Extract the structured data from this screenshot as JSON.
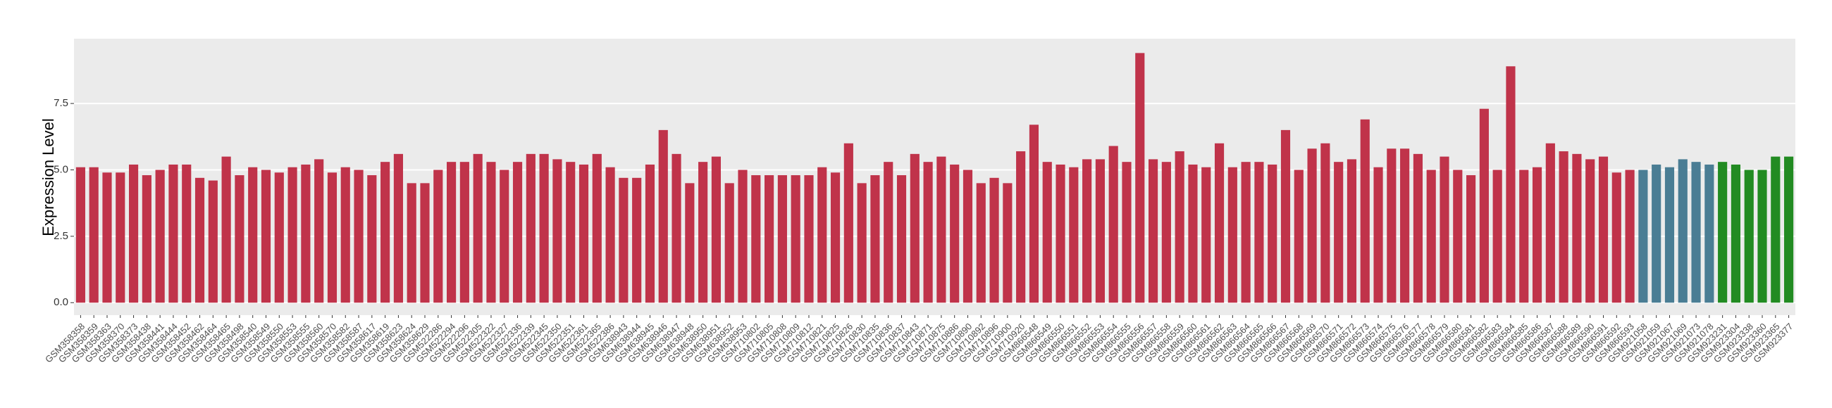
{
  "chart_data": {
    "type": "bar",
    "y_label": "Expression Level",
    "ylim": [
      -0.47,
      9.94
    ],
    "yticks": [
      {
        "value": 0,
        "label": "0.0"
      },
      2.5,
      {
        "value": 5,
        "label": "5.0"
      },
      7.5
    ],
    "grid": true,
    "series": [
      {
        "color": "#c0334a",
        "categories": [
          "GSM358358",
          "GSM358359",
          "GSM358363",
          "GSM358370",
          "GSM358373",
          "GSM358438",
          "GSM358441",
          "GSM358444",
          "GSM358452",
          "GSM358462",
          "GSM358464",
          "GSM358465",
          "GSM358498",
          "GSM358540",
          "GSM358549",
          "GSM358550",
          "GSM358553",
          "GSM358555",
          "GSM358560",
          "GSM358570",
          "GSM358582",
          "GSM358587",
          "GSM358617",
          "GSM358619",
          "GSM358623",
          "GSM358624",
          "GSM358629",
          "GSM522286",
          "GSM522294",
          "GSM522296",
          "GSM522305",
          "GSM522322",
          "GSM522327",
          "GSM522336",
          "GSM522339",
          "GSM522345",
          "GSM522350",
          "GSM522351",
          "GSM522361",
          "GSM522365",
          "GSM522386",
          "GSM638943",
          "GSM638944",
          "GSM638945",
          "GSM638946",
          "GSM638947",
          "GSM638948",
          "GSM638950",
          "GSM638951",
          "GSM638952",
          "GSM638953",
          "GSM710802",
          "GSM710805",
          "GSM710808",
          "GSM710809",
          "GSM710812",
          "GSM710821",
          "GSM710825",
          "GSM710826",
          "GSM710830",
          "GSM710835",
          "GSM710836",
          "GSM710837",
          "GSM710843",
          "GSM710871",
          "GSM710875",
          "GSM710886",
          "GSM710890",
          "GSM710892",
          "GSM710896",
          "GSM710900",
          "GSM710920",
          "GSM866548",
          "GSM866549",
          "GSM866550",
          "GSM866551",
          "GSM866552",
          "GSM866553",
          "GSM866554",
          "GSM866555",
          "GSM866556",
          "GSM866557",
          "GSM866558",
          "GSM866559",
          "GSM866560",
          "GSM866561",
          "GSM866562",
          "GSM866563",
          "GSM866564",
          "GSM866565",
          "GSM866566",
          "GSM866567",
          "GSM866568",
          "GSM866569",
          "GSM866570",
          "GSM866571",
          "GSM866572",
          "GSM866573",
          "GSM866574",
          "GSM866575",
          "GSM866576",
          "GSM866577",
          "GSM866578",
          "GSM866579",
          "GSM866580",
          "GSM866581",
          "GSM866582",
          "GSM866583",
          "GSM866584",
          "GSM866585",
          "GSM866586",
          "GSM866587",
          "GSM866588",
          "GSM866589",
          "GSM866590",
          "GSM866591",
          "GSM866592",
          "GSM866593"
        ],
        "values": [
          5.1,
          5.1,
          4.9,
          4.9,
          5.2,
          4.8,
          5.0,
          5.2,
          5.2,
          4.7,
          4.6,
          5.5,
          4.8,
          5.1,
          5.0,
          4.9,
          5.1,
          5.2,
          5.4,
          4.9,
          5.1,
          5.0,
          4.8,
          5.3,
          5.6,
          4.5,
          4.5,
          5.0,
          5.3,
          5.3,
          5.6,
          5.3,
          5.0,
          5.3,
          5.6,
          5.6,
          5.4,
          5.3,
          5.2,
          5.6,
          5.1,
          4.7,
          4.7,
          5.2,
          6.5,
          5.6,
          4.5,
          5.3,
          5.5,
          4.5,
          5.0,
          4.8,
          4.8,
          4.8,
          4.8,
          4.8,
          5.1,
          4.9,
          6.0,
          4.5,
          4.8,
          5.3,
          4.8,
          5.6,
          5.3,
          5.5,
          5.2,
          5.0,
          4.5,
          4.7,
          4.5,
          5.7,
          6.7,
          5.3,
          5.2,
          5.1,
          5.4,
          5.4,
          5.9,
          5.3,
          9.4,
          5.4,
          5.3,
          5.7,
          5.2,
          5.1,
          6.0,
          5.1,
          5.3,
          5.3,
          5.2,
          6.5,
          5.0,
          5.8,
          6.0,
          5.3,
          5.4,
          6.9,
          5.1,
          5.8,
          5.8,
          5.6,
          5.0,
          5.5,
          5.0,
          4.8,
          7.3,
          5.0,
          8.9,
          5.0,
          5.1,
          6.0,
          5.7,
          5.6,
          5.4,
          5.5,
          4.9,
          5.0
        ]
      },
      {
        "color": "#4a7d94",
        "categories": [
          "GSM921058",
          "GSM921059",
          "GSM921067",
          "GSM921069",
          "GSM921073",
          "GSM921078"
        ],
        "values": [
          5.0,
          5.2,
          5.1,
          5.4,
          5.3,
          5.2
        ]
      },
      {
        "color": "#228b22",
        "categories": [
          "GSM923231",
          "GSM923304",
          "GSM923338",
          "GSM923360",
          "GSM923365",
          "GSM923377"
        ],
        "values": [
          5.3,
          5.2,
          5.0,
          5.0,
          5.5,
          5.5
        ]
      }
    ]
  }
}
